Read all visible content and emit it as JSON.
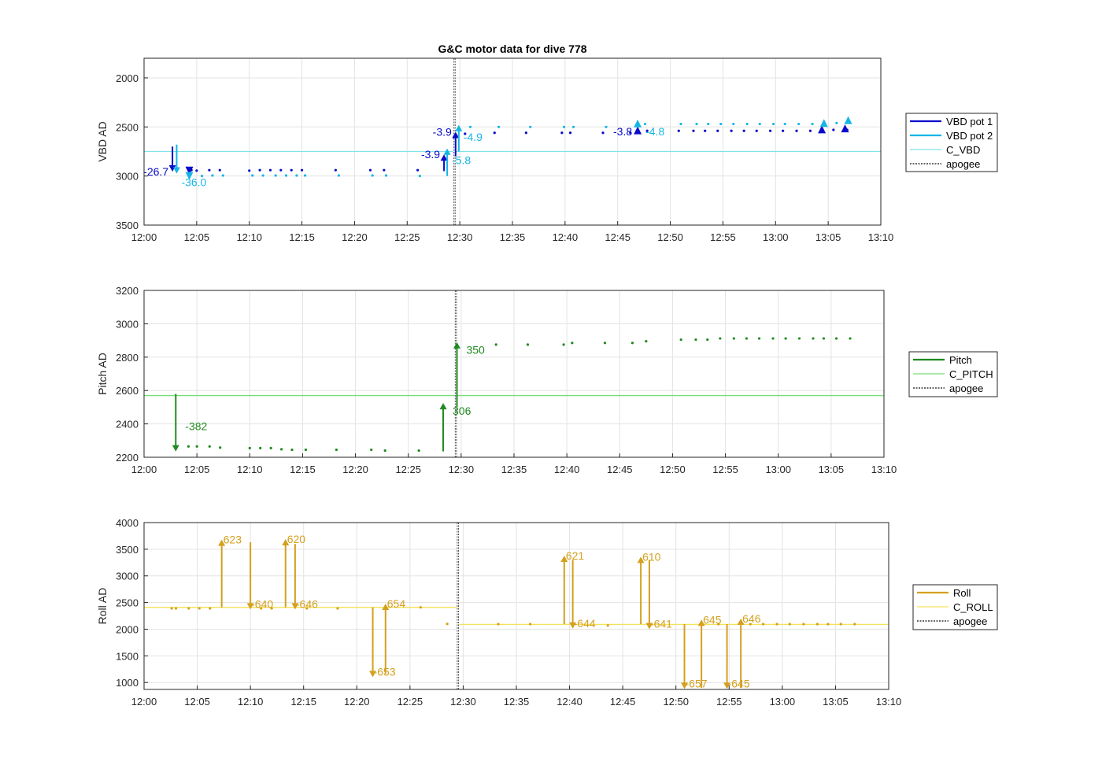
{
  "figure": {
    "title": "G&C motor data for dive 778"
  },
  "colors": {
    "vbd1": "#0a0acb",
    "vbd2": "#15b6e6",
    "c_vbd": "#7fe3ea",
    "pitch": "#1f8a1f",
    "c_pitch": "#77dd77",
    "roll": "#d4a01e",
    "c_roll": "#f4e25a",
    "apogee": "#555555",
    "grid": "#e3e3e3",
    "axis": "#262626"
  },
  "chart_data": [
    {
      "type": "scatter",
      "ylabel": "VBD AD",
      "ylim": [
        1800,
        3500
      ],
      "y_reversed": true,
      "yticks": [
        2000,
        2500,
        3000,
        3500
      ],
      "ytick_labels": [
        "2000",
        "2500",
        "3000",
        "3500"
      ],
      "xlim": [
        "12:00",
        "13:10"
      ],
      "xticks": [
        "12:00",
        "12:05",
        "12:10",
        "12:15",
        "12:20",
        "12:25",
        "12:30",
        "12:35",
        "12:40",
        "12:45",
        "12:50",
        "12:55",
        "13:00",
        "13:05",
        "13:10"
      ],
      "legend": [
        "VBD pot 1",
        "VBD pot 2",
        "C_VBD",
        "apogee"
      ],
      "legend_position": "outside-right",
      "apogee": "12:29.5",
      "constant_lines": [
        {
          "series": "C_VBD",
          "y": 2750
        }
      ],
      "series": [
        {
          "name": "VBD pot 1",
          "points": [
            [
              "12:04.5",
              2940
            ],
            [
              "12:05.0",
              2945
            ],
            [
              "12:06.2",
              2940
            ],
            [
              "12:07.2",
              2940
            ],
            [
              "12:10.0",
              2945
            ],
            [
              "12:11.0",
              2940
            ],
            [
              "12:12.0",
              2940
            ],
            [
              "12:13.0",
              2940
            ],
            [
              "12:14.0",
              2940
            ],
            [
              "12:15.0",
              2940
            ],
            [
              "12:18.2",
              2940
            ],
            [
              "12:21.5",
              2940
            ],
            [
              "12:22.8",
              2940
            ],
            [
              "12:26.0",
              2940
            ],
            [
              "12:30.5",
              2570
            ],
            [
              "12:33.3",
              2560
            ],
            [
              "12:36.3",
              2560
            ],
            [
              "12:39.7",
              2560
            ],
            [
              "12:40.5",
              2560
            ],
            [
              "12:43.6",
              2560
            ],
            [
              "12:46.2",
              2560
            ],
            [
              "12:47.8",
              2540
            ],
            [
              "12:50.8",
              2540
            ],
            [
              "12:52.2",
              2540
            ],
            [
              "12:53.3",
              2540
            ],
            [
              "12:54.5",
              2540
            ],
            [
              "12:55.8",
              2540
            ],
            [
              "12:57.0",
              2540
            ],
            [
              "12:58.2",
              2540
            ],
            [
              "12:59.5",
              2540
            ],
            [
              "13:00.7",
              2540
            ],
            [
              "13:02.0",
              2540
            ],
            [
              "13:03.3",
              2540
            ],
            [
              "13:04.3",
              2540
            ],
            [
              "13:05.5",
              2530
            ],
            [
              "13:06.8",
              2530
            ]
          ]
        },
        {
          "name": "VBD pot 2",
          "points": [
            [
              "12:05.5",
              3000
            ],
            [
              "12:06.5",
              2995
            ],
            [
              "12:07.5",
              2995
            ],
            [
              "12:10.3",
              2995
            ],
            [
              "12:11.3",
              2995
            ],
            [
              "12:12.5",
              2995
            ],
            [
              "12:13.5",
              2995
            ],
            [
              "12:14.5",
              2995
            ],
            [
              "12:15.3",
              2995
            ],
            [
              "12:18.5",
              2995
            ],
            [
              "12:21.7",
              2995
            ],
            [
              "12:23.0",
              2995
            ],
            [
              "12:26.2",
              3000
            ],
            [
              "12:31.0",
              2500
            ],
            [
              "12:33.7",
              2500
            ],
            [
              "12:36.7",
              2500
            ],
            [
              "12:39.9",
              2500
            ],
            [
              "12:40.8",
              2500
            ],
            [
              "12:43.9",
              2500
            ],
            [
              "12:47.6",
              2470
            ],
            [
              "12:51.0",
              2470
            ],
            [
              "12:52.5",
              2470
            ],
            [
              "12:53.6",
              2470
            ],
            [
              "12:54.8",
              2470
            ],
            [
              "12:56.0",
              2470
            ],
            [
              "12:57.3",
              2470
            ],
            [
              "12:58.5",
              2470
            ],
            [
              "12:59.8",
              2470
            ],
            [
              "13:00.9",
              2470
            ],
            [
              "13:02.2",
              2470
            ],
            [
              "13:03.5",
              2470
            ],
            [
              "13:05.8",
              2460
            ]
          ]
        }
      ],
      "moves": [
        {
          "series": "VBD pot 1",
          "t": "12:02.7",
          "from": 2700,
          "to": 2955,
          "label": "-26.7"
        },
        {
          "series": "VBD pot 2",
          "t": "12:03.1",
          "from": 2680,
          "to": 2975,
          "label": "-36.0"
        },
        {
          "series": "VBD pot 1",
          "t": "12:28.5",
          "from": 2950,
          "to": 2780,
          "label": "-3.9"
        },
        {
          "series": "VBD pot 2",
          "t": "12:28.8",
          "from": 3000,
          "to": 2720,
          "label": "-5.8"
        },
        {
          "series": "VBD pot 1",
          "t": "12:29.6",
          "from": 2800,
          "to": 2550,
          "label": "-3.9"
        },
        {
          "series": "VBD pot 2",
          "t": "12:29.9",
          "from": 2750,
          "to": 2480,
          "label": "-4.9"
        }
      ],
      "triangles_down": [
        {
          "series": "VBD pot 1",
          "t": "12:04.3",
          "y": 2945
        },
        {
          "series": "VBD pot 2",
          "t": "12:04.3",
          "y": 3000
        }
      ],
      "triangles_up": [
        {
          "series": "VBD pot 1",
          "t": "12:46.9",
          "y": 2535
        },
        {
          "series": "VBD pot 2",
          "t": "12:46.9",
          "y": 2465
        },
        {
          "series": "VBD pot 1",
          "t": "13:04.4",
          "y": 2525
        },
        {
          "series": "VBD pot 2",
          "t": "13:04.6",
          "y": 2460
        },
        {
          "series": "VBD pot 1",
          "t": "13:06.6",
          "y": 2515
        },
        {
          "series": "VBD pot 2",
          "t": "13:06.9",
          "y": 2430
        }
      ],
      "annotations": [
        {
          "series": "VBD pot 1",
          "t": "12:46.9",
          "y": 2545,
          "label": "-3.8"
        },
        {
          "series": "VBD pot 2",
          "t": "12:46.9",
          "y": 2545,
          "label": "-4.8"
        }
      ]
    },
    {
      "type": "scatter",
      "ylabel": "Pitch AD",
      "ylim": [
        2200,
        3200
      ],
      "yticks": [
        2200,
        2400,
        2600,
        2800,
        3000,
        3200
      ],
      "ytick_labels": [
        "2200",
        "2400",
        "2600",
        "2800",
        "3000",
        "3200"
      ],
      "xlim": [
        "12:00",
        "13:10"
      ],
      "xticks": [
        "12:00",
        "12:05",
        "12:10",
        "12:15",
        "12:20",
        "12:25",
        "12:30",
        "12:35",
        "12:40",
        "12:45",
        "12:50",
        "12:55",
        "13:00",
        "13:05",
        "13:10"
      ],
      "legend": [
        "Pitch",
        "C_PITCH",
        "apogee"
      ],
      "legend_position": "outside-right",
      "apogee": "12:29.5",
      "constant_lines": [
        {
          "series": "C_PITCH",
          "y": 2570
        }
      ],
      "series": [
        {
          "name": "Pitch",
          "points": [
            [
              "12:04.2",
              2265
            ],
            [
              "12:05.0",
              2265
            ],
            [
              "12:06.2",
              2265
            ],
            [
              "12:07.2",
              2258
            ],
            [
              "12:10.0",
              2255
            ],
            [
              "12:11.0",
              2255
            ],
            [
              "12:12.0",
              2255
            ],
            [
              "12:13.0",
              2248
            ],
            [
              "12:14.0",
              2245
            ],
            [
              "12:15.3",
              2245
            ],
            [
              "12:18.2",
              2245
            ],
            [
              "12:21.5",
              2245
            ],
            [
              "12:22.8",
              2240
            ],
            [
              "12:26.0",
              2240
            ],
            [
              "12:33.3",
              2875
            ],
            [
              "12:36.3",
              2875
            ],
            [
              "12:39.7",
              2875
            ],
            [
              "12:40.5",
              2885
            ],
            [
              "12:43.6",
              2885
            ],
            [
              "12:46.2",
              2885
            ],
            [
              "12:47.5",
              2895
            ],
            [
              "12:50.8",
              2905
            ],
            [
              "12:52.2",
              2905
            ],
            [
              "12:53.3",
              2905
            ],
            [
              "12:54.5",
              2912
            ],
            [
              "12:55.8",
              2912
            ],
            [
              "12:57.0",
              2912
            ],
            [
              "12:58.2",
              2912
            ],
            [
              "12:59.5",
              2912
            ],
            [
              "13:00.7",
              2912
            ],
            [
              "13:02.0",
              2912
            ],
            [
              "13:03.3",
              2912
            ],
            [
              "13:04.3",
              2912
            ],
            [
              "13:05.5",
              2912
            ],
            [
              "13:06.8",
              2912
            ]
          ]
        }
      ],
      "moves": [
        {
          "series": "Pitch",
          "t": "12:03.0",
          "from": 2580,
          "to": 2235,
          "label": "-382"
        },
        {
          "series": "Pitch",
          "t": "12:28.3",
          "from": 2235,
          "to": 2525,
          "label": "306"
        },
        {
          "series": "Pitch",
          "t": "12:29.6",
          "from": 2500,
          "to": 2890,
          "label": "350"
        }
      ]
    },
    {
      "type": "scatter",
      "ylabel": "Roll AD",
      "ylim": [
        870,
        4000
      ],
      "yticks": [
        1000,
        1500,
        2000,
        2500,
        3000,
        3500,
        4000
      ],
      "ytick_labels": [
        "1000",
        "1500",
        "2000",
        "2500",
        "3000",
        "3500",
        "4000"
      ],
      "xlim": [
        "12:00",
        "13:10"
      ],
      "xticks": [
        "12:00",
        "12:05",
        "12:10",
        "12:15",
        "12:20",
        "12:25",
        "12:30",
        "12:35",
        "12:40",
        "12:45",
        "12:50",
        "12:55",
        "13:00",
        "13:05",
        "13:10"
      ],
      "legend": [
        "Roll",
        "C_ROLL",
        "apogee"
      ],
      "legend_position": "outside-right",
      "apogee": "12:29.5",
      "constant_lines": [
        {
          "series": "C_ROLL",
          "from": "12:00",
          "to": "12:29.5",
          "y": 2410
        },
        {
          "series": "C_ROLL",
          "from": "12:29.5",
          "to": "13:10",
          "y": 2090
        }
      ],
      "series": [
        {
          "name": "Roll",
          "points": [
            [
              "12:02.6",
              2390
            ],
            [
              "12:03.0",
              2390
            ],
            [
              "12:04.2",
              2390
            ],
            [
              "12:05.2",
              2390
            ],
            [
              "12:06.2",
              2390
            ],
            [
              "12:11.0",
              2390
            ],
            [
              "12:12.0",
              2390
            ],
            [
              "12:15.3",
              2390
            ],
            [
              "12:18.2",
              2390
            ],
            [
              "12:26.0",
              2410
            ],
            [
              "12:28.5",
              2100
            ],
            [
              "12:33.3",
              2095
            ],
            [
              "12:36.3",
              2095
            ],
            [
              "12:43.6",
              2070
            ],
            [
              "12:54.0",
              2095
            ],
            [
              "12:57.0",
              2095
            ],
            [
              "12:58.2",
              2095
            ],
            [
              "12:59.5",
              2095
            ],
            [
              "13:00.7",
              2095
            ],
            [
              "13:02.0",
              2095
            ],
            [
              "13:03.3",
              2095
            ],
            [
              "13:04.3",
              2095
            ],
            [
              "13:05.5",
              2095
            ],
            [
              "13:06.8",
              2095
            ]
          ]
        }
      ],
      "moves": [
        {
          "series": "Roll",
          "t": "12:07.3",
          "from": 2410,
          "to": 3680,
          "label": "623"
        },
        {
          "series": "Roll",
          "t": "12:10.0",
          "from": 3630,
          "to": 2370,
          "label": "-640"
        },
        {
          "series": "Roll",
          "t": "12:13.3",
          "from": 2410,
          "to": 3690,
          "label": "620"
        },
        {
          "series": "Roll",
          "t": "12:14.2",
          "from": 3600,
          "to": 2370,
          "label": "-646"
        },
        {
          "series": "Roll",
          "t": "12:21.5",
          "from": 2410,
          "to": 1100,
          "label": "-653"
        },
        {
          "series": "Roll",
          "t": "12:22.7",
          "from": 1160,
          "to": 2480,
          "label": "654"
        },
        {
          "series": "Roll",
          "t": "12:39.5",
          "from": 2095,
          "to": 3380,
          "label": "621"
        },
        {
          "series": "Roll",
          "t": "12:40.3",
          "from": 3300,
          "to": 2010,
          "label": "-644"
        },
        {
          "series": "Roll",
          "t": "12:46.7",
          "from": 2095,
          "to": 3360,
          "label": "610"
        },
        {
          "series": "Roll",
          "t": "12:47.5",
          "from": 3300,
          "to": 2000,
          "label": "-641"
        },
        {
          "series": "Roll",
          "t": "12:50.8",
          "from": 2095,
          "to": 880,
          "label": "-657"
        },
        {
          "series": "Roll",
          "t": "12:52.4",
          "from": 900,
          "to": 2180,
          "label": "645"
        },
        {
          "series": "Roll",
          "t": "12:54.8",
          "from": 2095,
          "to": 880,
          "label": "-645"
        },
        {
          "series": "Roll",
          "t": "12:56.1",
          "from": 900,
          "to": 2200,
          "label": "646"
        }
      ]
    }
  ]
}
